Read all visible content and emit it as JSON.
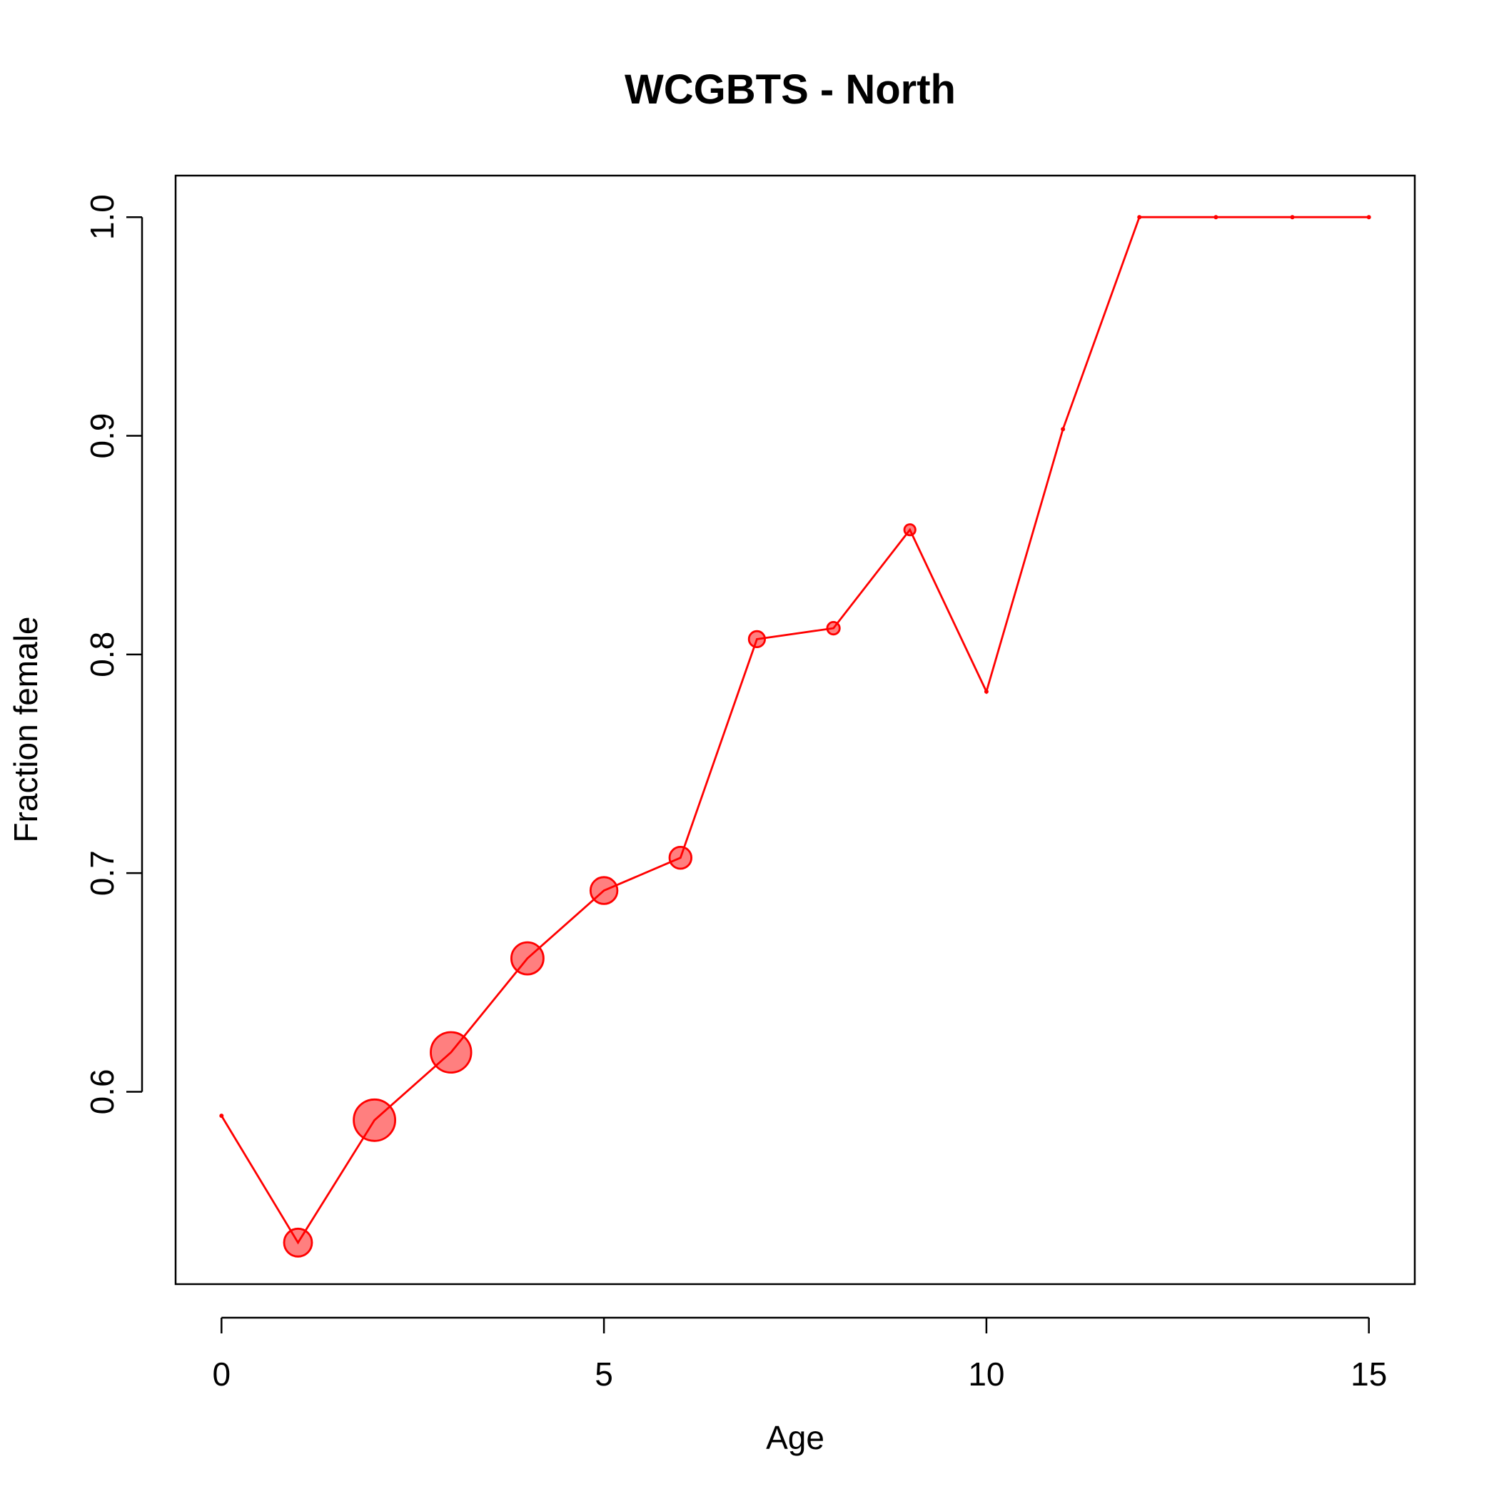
{
  "chart_data": {
    "type": "scatter",
    "title": "WCGBTS - North",
    "xlabel": "Age",
    "ylabel": "Fraction female",
    "xlim": [
      -0.6,
      15.6
    ],
    "ylim": [
      0.512,
      1.019
    ],
    "x_ticks": [
      0,
      5,
      10,
      15
    ],
    "x_tick_labels": [
      "0",
      "5",
      "10",
      "15"
    ],
    "y_ticks": [
      0.6,
      0.7,
      0.8,
      0.9,
      1.0
    ],
    "y_tick_labels": [
      "0.6",
      "0.7",
      "0.8",
      "0.9",
      "1.0"
    ],
    "grid": false,
    "legend": "none",
    "color": "#ff0000",
    "series": [
      {
        "x": [
          0,
          1,
          2,
          3,
          4,
          5,
          6,
          7,
          8,
          9,
          10,
          11,
          12,
          13,
          14,
          15
        ],
        "y": [
          0.589,
          0.531,
          0.587,
          0.618,
          0.661,
          0.692,
          0.707,
          0.807,
          0.812,
          0.857,
          0.783,
          0.903,
          1.0,
          1.0,
          1.0,
          1.0
        ],
        "sample_weight": [
          0,
          0.45,
          1.0,
          0.95,
          0.6,
          0.42,
          0.28,
          0.15,
          0.09,
          0.07,
          0,
          0,
          0,
          0,
          0,
          0
        ]
      }
    ]
  }
}
